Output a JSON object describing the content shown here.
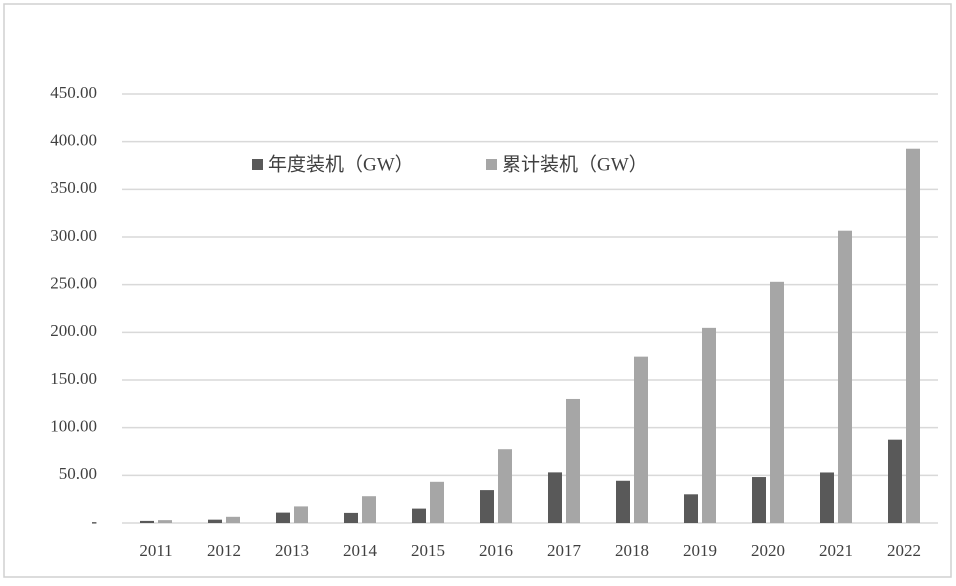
{
  "chart_data": {
    "type": "bar",
    "categories": [
      "2011",
      "2012",
      "2013",
      "2014",
      "2015",
      "2016",
      "2017",
      "2018",
      "2019",
      "2020",
      "2021",
      "2022"
    ],
    "series": [
      {
        "name": "年度装机（GW）",
        "color": "#595959",
        "values": [
          2.2,
          3.5,
          10.9,
          10.6,
          15.1,
          34.5,
          53.1,
          44.3,
          30.1,
          48.2,
          53.0,
          87.4
        ]
      },
      {
        "name": "累计装机（GW）",
        "color": "#a6a6a6",
        "values": [
          3.0,
          6.5,
          17.4,
          28.1,
          43.2,
          77.4,
          130.1,
          174.5,
          204.7,
          253.0,
          306.6,
          392.6
        ]
      }
    ],
    "ylim": [
      0,
      450
    ],
    "yticks": [
      {
        "value": 0,
        "label": "-"
      },
      {
        "value": 50,
        "label": "50.00"
      },
      {
        "value": 100,
        "label": "100.00"
      },
      {
        "value": 150,
        "label": "150.00"
      },
      {
        "value": 200,
        "label": "200.00"
      },
      {
        "value": 250,
        "label": "250.00"
      },
      {
        "value": 300,
        "label": "300.00"
      },
      {
        "value": 350,
        "label": "350.00"
      },
      {
        "value": 400,
        "label": "400.00"
      },
      {
        "value": 450,
        "label": "450.00"
      }
    ],
    "grid": true,
    "legend": "top"
  }
}
